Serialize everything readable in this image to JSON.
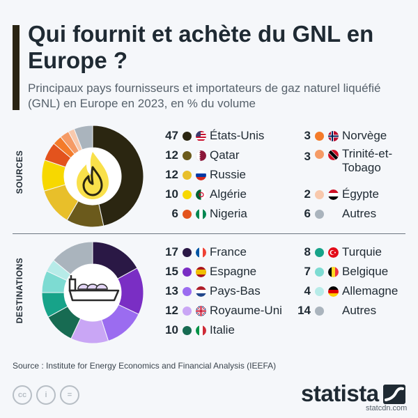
{
  "header": {
    "title": "Qui fournit et achète du GNL en Europe ?",
    "subtitle": "Principaux pays fournisseurs et importateurs de gaz naturel liquéfié (GNL) en Europe en 2023, en % du volume"
  },
  "sections": {
    "sources_label": "SOURCES",
    "destinations_label": "DESTINATIONS"
  },
  "chart_data": [
    {
      "type": "pie",
      "name": "SOURCES",
      "unit": "% du volume",
      "categories": [
        "États-Unis",
        "Qatar",
        "Russie",
        "Algérie",
        "Nigeria",
        "Norvège",
        "Trinité-et-Tobago",
        "Égypte",
        "Autres"
      ],
      "values": [
        47,
        12,
        12,
        10,
        6,
        3,
        3,
        2,
        6
      ],
      "colors": [
        "#2b2611",
        "#6b5a1c",
        "#e8bf2a",
        "#f7d800",
        "#e3531d",
        "#f47b2a",
        "#f59b66",
        "#f8c9ad",
        "#aab4bd"
      ],
      "flags": [
        "us-flag-icon",
        "qatar-flag-icon",
        "russia-flag-icon",
        "algeria-flag-icon",
        "nigeria-flag-icon",
        "norway-flag-icon",
        "trinidad-flag-icon",
        "egypt-flag-icon",
        ""
      ]
    },
    {
      "type": "pie",
      "name": "DESTINATIONS",
      "unit": "% du volume",
      "categories": [
        "France",
        "Espagne",
        "Pays-Bas",
        "Royaume-Uni",
        "Italie",
        "Turquie",
        "Belgique",
        "Allemagne",
        "Autres"
      ],
      "values": [
        17,
        15,
        13,
        12,
        10,
        8,
        7,
        4,
        14
      ],
      "colors": [
        "#2a1845",
        "#7a2ec4",
        "#9b6cf0",
        "#c9a6f5",
        "#176b52",
        "#17a389",
        "#7ddbd2",
        "#b7ebe8",
        "#aab4bd"
      ],
      "flags": [
        "france-flag-icon",
        "spain-flag-icon",
        "netherlands-flag-icon",
        "uk-flag-icon",
        "italy-flag-icon",
        "turkey-flag-icon",
        "belgium-flag-icon",
        "germany-flag-icon",
        ""
      ]
    }
  ],
  "icons": {
    "sources_center": "flame-icon",
    "destinations_center": "lng-tanker-icon"
  },
  "footer": {
    "source": "Source : Institute for Energy Economics and Financial Analysis (IEEFA)",
    "brand": "statista",
    "watermark": "statcdn.com",
    "cc_icons": [
      "cc-icon",
      "by-icon",
      "nd-icon"
    ],
    "cc_labels": [
      "cc",
      "i",
      "="
    ]
  }
}
